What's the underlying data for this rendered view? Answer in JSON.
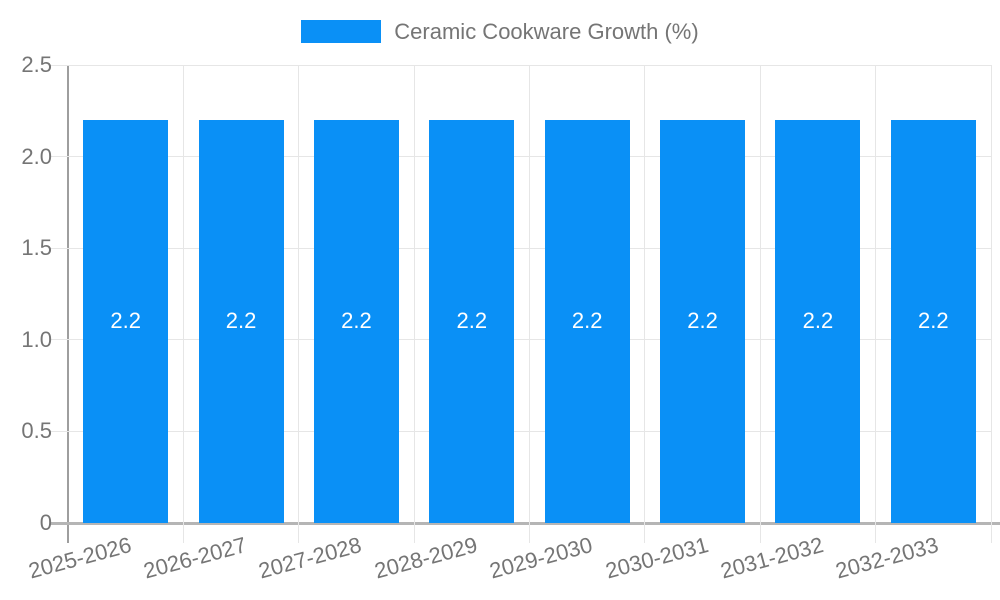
{
  "chart_data": {
    "type": "bar",
    "title": "",
    "legend_label": "Ceramic Cookware Growth (%)",
    "legend_position": "top",
    "categories": [
      "2025-2026",
      "2026-2027",
      "2027-2028",
      "2028-2029",
      "2029-2030",
      "2030-2031",
      "2031-2032",
      "2032-2033"
    ],
    "values": [
      2.2,
      2.2,
      2.2,
      2.2,
      2.2,
      2.2,
      2.2,
      2.2
    ],
    "value_labels": [
      "2.2",
      "2.2",
      "2.2",
      "2.2",
      "2.2",
      "2.2",
      "2.2",
      "2.2"
    ],
    "xlabel": "",
    "ylabel": "",
    "ylim": [
      0,
      2.5
    ],
    "yticks": [
      {
        "value": 0,
        "label": "0"
      },
      {
        "value": 0.5,
        "label": "0.5"
      },
      {
        "value": 1.0,
        "label": "1.0"
      },
      {
        "value": 1.5,
        "label": "1.5"
      },
      {
        "value": 2.0,
        "label": "2.0"
      },
      {
        "value": 2.5,
        "label": "2.5"
      }
    ],
    "grid": true,
    "colors": {
      "bar": "#0a90f6",
      "grid": "#e6e6e6",
      "y_axis": "#9e9e9e",
      "x_axis": "#b5b5b5",
      "text": "#757575",
      "value_label": "#ffffff",
      "background": "#ffffff"
    }
  }
}
